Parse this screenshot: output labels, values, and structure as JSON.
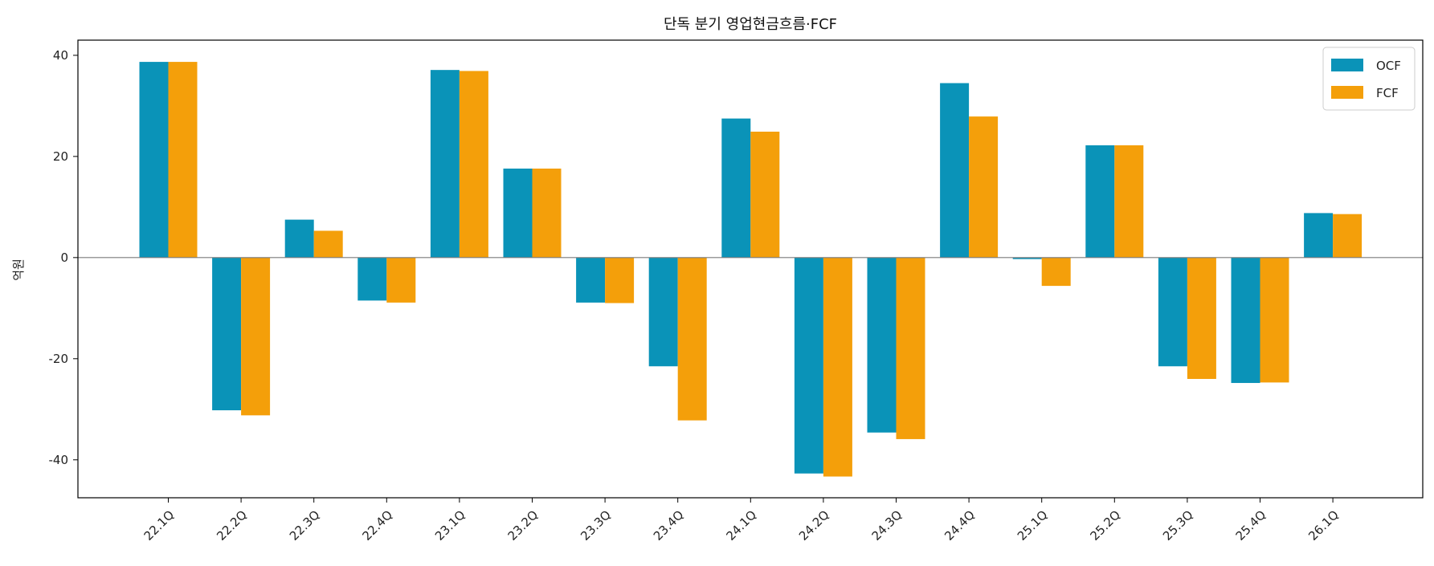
{
  "chart_data": {
    "type": "bar",
    "title": "단독 분기 영업현금흐름·FCF",
    "xlabel": "",
    "ylabel": "억원",
    "ylim": [
      -47.5,
      43
    ],
    "yticks": [
      -40,
      -20,
      0,
      20,
      40
    ],
    "categories": [
      "22.1Q",
      "22.2Q",
      "22.3Q",
      "22.4Q",
      "23.1Q",
      "23.2Q",
      "23.3Q",
      "23.4Q",
      "24.1Q",
      "24.2Q",
      "24.3Q",
      "24.4Q",
      "25.1Q",
      "25.2Q",
      "25.3Q",
      "25.4Q",
      "26.1Q"
    ],
    "series": [
      {
        "name": "OCF",
        "color": "#0a93b8",
        "values": [
          38.7,
          -30.2,
          7.5,
          -8.5,
          37.1,
          17.6,
          -8.9,
          -21.5,
          27.5,
          -42.7,
          -34.6,
          34.5,
          -0.3,
          22.2,
          -21.5,
          -24.8,
          8.8
        ]
      },
      {
        "name": "FCF",
        "color": "#f49f0a",
        "values": [
          38.7,
          -31.2,
          5.3,
          -8.9,
          36.9,
          17.6,
          -9.0,
          -32.2,
          24.9,
          -43.3,
          -35.9,
          27.9,
          -5.6,
          22.2,
          -24.0,
          -24.7,
          8.6
        ]
      }
    ],
    "grid": false,
    "zero_line": true,
    "legend_position": "top-right"
  }
}
